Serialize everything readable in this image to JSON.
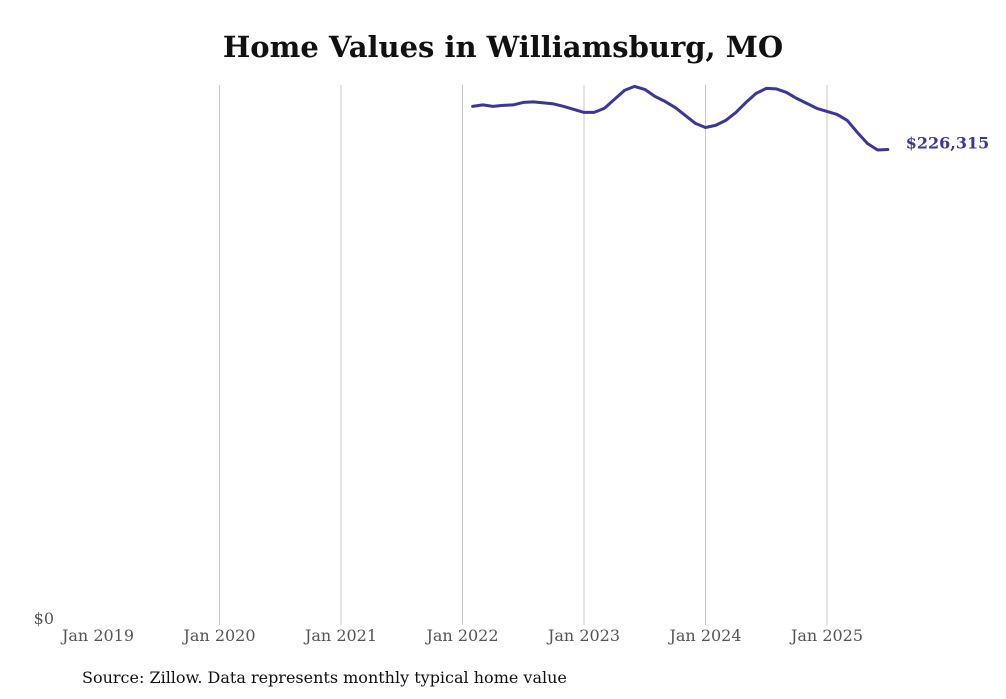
{
  "chart_data": {
    "type": "line",
    "title": "Home Values in Williamsburg, MO",
    "source": "Source: Zillow. Data represents monthly typical home value",
    "xlabel": "",
    "ylabel": "",
    "x_ticks": [
      "Jan 2019",
      "Jan 2020",
      "Jan 2021",
      "Jan 2022",
      "Jan 2023",
      "Jan 2024",
      "Jan 2025"
    ],
    "y_ticks": [
      "$0"
    ],
    "ylim": [
      0,
      257000
    ],
    "xlim": [
      "2019-01",
      "2025-08"
    ],
    "grid": "vertical",
    "color": "#3b3699",
    "end_label": "$226,315",
    "series": [
      {
        "name": "Home value",
        "start": "2022-02",
        "values": [
          246800,
          247516,
          246800,
          247278,
          247516,
          248707,
          248945,
          248469,
          247992,
          246800,
          245372,
          243942,
          243942,
          245848,
          250136,
          254424,
          256330,
          254901,
          251566,
          249183,
          246325,
          242513,
          238701,
          236796,
          237749,
          240131,
          243942,
          248707,
          252995,
          255377,
          255139,
          253471,
          250613,
          248230,
          245848,
          244419,
          242990,
          240131,
          234413,
          229172,
          226077,
          226315
        ]
      }
    ]
  }
}
